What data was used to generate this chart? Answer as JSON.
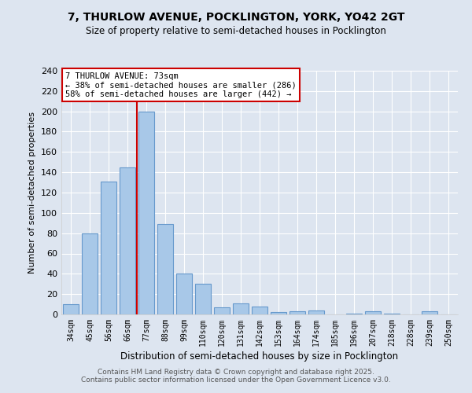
{
  "title": "7, THURLOW AVENUE, POCKLINGTON, YORK, YO42 2GT",
  "subtitle": "Size of property relative to semi-detached houses in Pocklington",
  "xlabel": "Distribution of semi-detached houses by size in Pocklington",
  "ylabel": "Number of semi-detached properties",
  "categories": [
    "34sqm",
    "45sqm",
    "56sqm",
    "66sqm",
    "77sqm",
    "88sqm",
    "99sqm",
    "110sqm",
    "120sqm",
    "131sqm",
    "142sqm",
    "153sqm",
    "164sqm",
    "174sqm",
    "185sqm",
    "196sqm",
    "207sqm",
    "218sqm",
    "228sqm",
    "239sqm",
    "250sqm"
  ],
  "values": [
    10,
    80,
    131,
    145,
    200,
    89,
    40,
    30,
    7,
    11,
    8,
    2,
    3,
    4,
    0,
    1,
    3,
    1,
    0,
    3,
    0
  ],
  "bar_color": "#a8c8e8",
  "bar_edge_color": "#6699cc",
  "red_line_index": 3.5,
  "annotation_title": "7 THURLOW AVENUE: 73sqm",
  "annotation_line1": "← 38% of semi-detached houses are smaller (286)",
  "annotation_line2": "58% of semi-detached houses are larger (442) →",
  "annotation_box_color": "#ffffff",
  "annotation_box_edge": "#cc0000",
  "ylim": [
    0,
    240
  ],
  "yticks": [
    0,
    20,
    40,
    60,
    80,
    100,
    120,
    140,
    160,
    180,
    200,
    220,
    240
  ],
  "background_color": "#dde5f0",
  "grid_color": "#ffffff",
  "footer_line1": "Contains HM Land Registry data © Crown copyright and database right 2025.",
  "footer_line2": "Contains public sector information licensed under the Open Government Licence v3.0."
}
